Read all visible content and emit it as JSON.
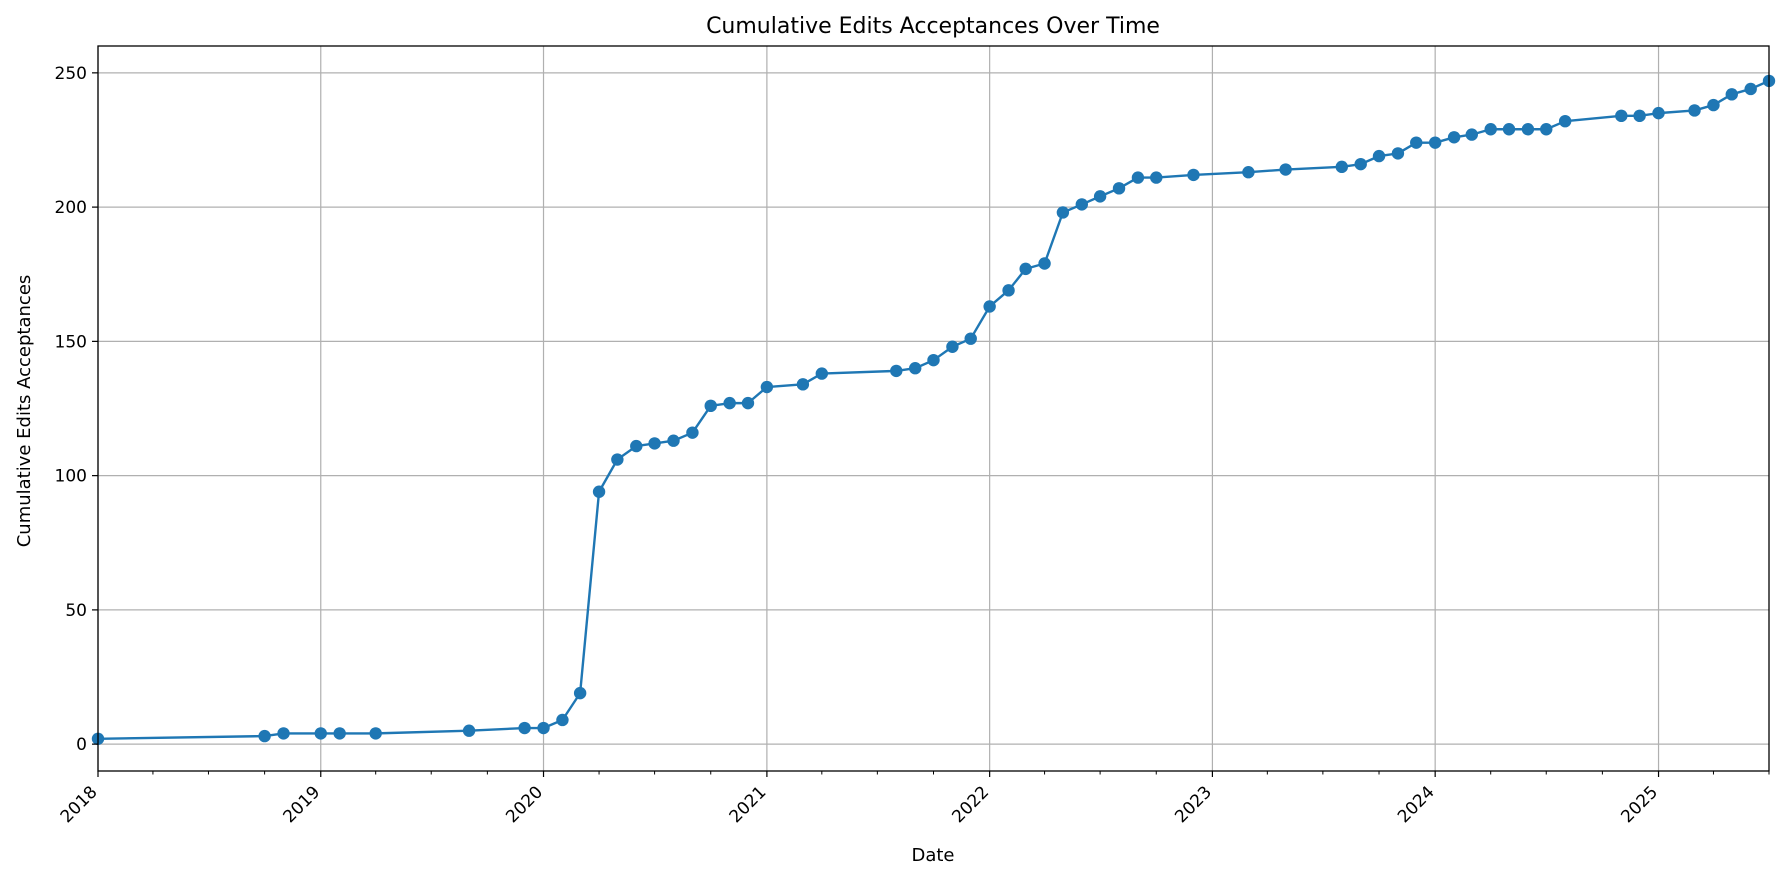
{
  "chart_data": {
    "type": "line",
    "title": "Cumulative Edits Acceptances Over Time",
    "xlabel": "Date",
    "ylabel": "Cumulative Edits Acceptances",
    "xlim": [
      "2018-01-01",
      "2025-07-01"
    ],
    "ylim": [
      -10,
      260
    ],
    "x_ticks": [
      "2018",
      "2019",
      "2020",
      "2021",
      "2022",
      "2023",
      "2024",
      "2025"
    ],
    "y_ticks": [
      0,
      50,
      100,
      150,
      200,
      250
    ],
    "grid": true,
    "legend": "none",
    "series": [
      {
        "color": "#1f77b4",
        "marker": "circle",
        "points": [
          [
            "2018-01-01",
            2
          ],
          [
            "2018-10-01",
            3
          ],
          [
            "2018-11-01",
            4
          ],
          [
            "2019-01-01",
            4
          ],
          [
            "2019-02-01",
            4
          ],
          [
            "2019-04-01",
            4
          ],
          [
            "2019-09-01",
            5
          ],
          [
            "2019-12-01",
            6
          ],
          [
            "2020-01-01",
            6
          ],
          [
            "2020-02-01",
            9
          ],
          [
            "2020-03-01",
            19
          ],
          [
            "2020-04-01",
            94
          ],
          [
            "2020-05-01",
            106
          ],
          [
            "2020-06-01",
            111
          ],
          [
            "2020-07-01",
            112
          ],
          [
            "2020-08-01",
            113
          ],
          [
            "2020-09-01",
            116
          ],
          [
            "2020-10-01",
            126
          ],
          [
            "2020-11-01",
            127
          ],
          [
            "2020-12-01",
            127
          ],
          [
            "2021-01-01",
            133
          ],
          [
            "2021-03-01",
            134
          ],
          [
            "2021-04-01",
            138
          ],
          [
            "2021-08-01",
            139
          ],
          [
            "2021-09-01",
            140
          ],
          [
            "2021-10-01",
            143
          ],
          [
            "2021-11-01",
            148
          ],
          [
            "2021-12-01",
            151
          ],
          [
            "2022-01-01",
            163
          ],
          [
            "2022-02-01",
            169
          ],
          [
            "2022-03-01",
            177
          ],
          [
            "2022-04-01",
            179
          ],
          [
            "2022-05-01",
            198
          ],
          [
            "2022-06-01",
            201
          ],
          [
            "2022-07-01",
            204
          ],
          [
            "2022-08-01",
            207
          ],
          [
            "2022-09-01",
            211
          ],
          [
            "2022-10-01",
            211
          ],
          [
            "2022-12-01",
            212
          ],
          [
            "2023-03-01",
            213
          ],
          [
            "2023-05-01",
            214
          ],
          [
            "2023-08-01",
            215
          ],
          [
            "2023-09-01",
            216
          ],
          [
            "2023-10-01",
            219
          ],
          [
            "2023-11-01",
            220
          ],
          [
            "2023-12-01",
            224
          ],
          [
            "2024-01-01",
            224
          ],
          [
            "2024-02-01",
            226
          ],
          [
            "2024-03-01",
            227
          ],
          [
            "2024-04-01",
            229
          ],
          [
            "2024-05-01",
            229
          ],
          [
            "2024-06-01",
            229
          ],
          [
            "2024-07-01",
            229
          ],
          [
            "2024-08-01",
            232
          ],
          [
            "2024-11-01",
            234
          ],
          [
            "2024-12-01",
            234
          ],
          [
            "2025-01-01",
            235
          ],
          [
            "2025-03-01",
            236
          ],
          [
            "2025-04-01",
            238
          ],
          [
            "2025-05-01",
            242
          ],
          [
            "2025-06-01",
            244
          ],
          [
            "2025-07-01",
            247
          ]
        ]
      }
    ]
  }
}
